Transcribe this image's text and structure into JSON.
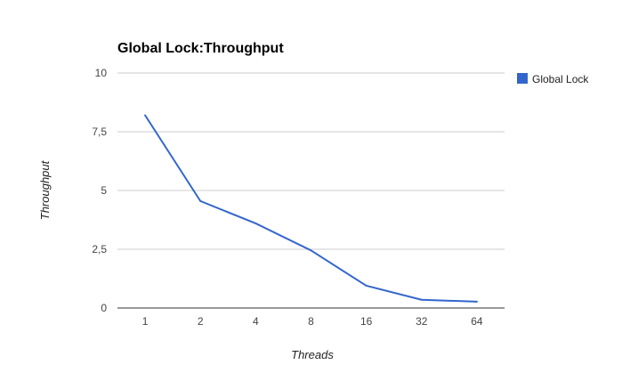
{
  "chart_data": {
    "type": "line",
    "title": "Global Lock:Throughput",
    "xlabel": "Threads",
    "ylabel": "Throughput",
    "categories": [
      "1",
      "2",
      "4",
      "8",
      "16",
      "32",
      "64"
    ],
    "series": [
      {
        "name": "Global Lock",
        "values": [
          8.2,
          4.55,
          3.6,
          2.45,
          0.95,
          0.35,
          0.27
        ],
        "color": "#3366cc"
      }
    ],
    "ylim": [
      0,
      10
    ],
    "y_ticks": [
      {
        "value": 0,
        "label": "0"
      },
      {
        "value": 2.5,
        "label": "2,5"
      },
      {
        "value": 5,
        "label": "5"
      },
      {
        "value": 7.5,
        "label": "7,5"
      },
      {
        "value": 10,
        "label": "10"
      }
    ],
    "grid": true,
    "legend": "right"
  }
}
